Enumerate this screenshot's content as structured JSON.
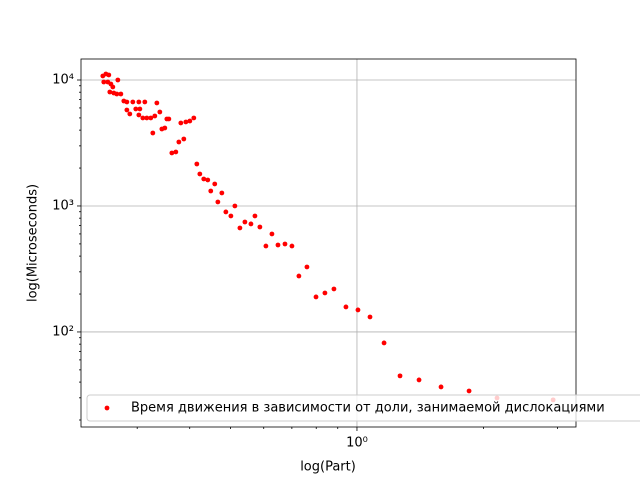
{
  "chart_data": {
    "type": "scatter",
    "log_x": true,
    "log_y": true,
    "grid": true,
    "legend": "lower left",
    "x_label": "log(Part)",
    "y_label": "log(Microseconds)",
    "xlim": [
      0.2205,
      3.32
    ],
    "ylim": [
      17.6,
      14678
    ],
    "xticks": [
      {
        "value": 1,
        "label": "10⁰"
      }
    ],
    "yticks": [
      {
        "value": 100,
        "label": "10²"
      },
      {
        "value": 1000,
        "label": "10³"
      },
      {
        "value": 10000,
        "label": "10⁴"
      }
    ],
    "series": [
      {
        "name": "Время движения в зависимости от доли, занимаемой дислокациями",
        "color": "#ff0000",
        "x": [
          0.2485,
          0.2527,
          0.2568,
          0.2498,
          0.2554,
          0.2597,
          0.2625,
          0.2582,
          0.2639,
          0.2698,
          0.2743,
          0.2683,
          0.2788,
          0.2835,
          0.2929,
          0.3027,
          0.3128,
          0.2835,
          0.2881,
          0.2977,
          0.3044,
          0.3027,
          0.3094,
          0.3162,
          0.3232,
          0.3304,
          0.3341,
          0.3396,
          0.3268,
          0.3434,
          0.3529,
          0.3568,
          0.349,
          0.3627,
          0.3707,
          0.3769,
          0.381,
          0.3873,
          0.3916,
          0.4003,
          0.4091,
          0.4159,
          0.4228,
          0.432,
          0.4416,
          0.4489,
          0.4588,
          0.4667,
          0.477,
          0.4876,
          0.5012,
          0.5123,
          0.5266,
          0.5412,
          0.5594,
          0.5718,
          0.5875,
          0.6072,
          0.6276,
          0.6487,
          0.6741,
          0.7003,
          0.7275,
          0.7603,
          0.799,
          0.839,
          0.8815,
          0.9414,
          1.0055,
          1.074,
          1.16,
          1.266,
          1.405,
          1.585,
          1.848,
          2.154,
          2.929
        ],
        "values": [
          10760,
          11160,
          10960,
          9640,
          9640,
          9295,
          8800,
          8030,
          7885,
          10000,
          7743,
          7743,
          6813,
          6690,
          6690,
          6690,
          6690,
          5780,
          5374,
          5887,
          5887,
          5275,
          4994,
          4994,
          4994,
          5179,
          6571,
          5572,
          3796,
          4084,
          4904,
          4904,
          4159,
          2634,
          2683,
          3220,
          4558,
          3401,
          4642,
          4727,
          4994,
          2154,
          1795,
          1638,
          1608,
          1315,
          1495,
          1076,
          1268,
          896.5,
          833,
          1000,
          669,
          746,
          720,
          833,
          681,
          481,
          599.5,
          490,
          499,
          481,
          278,
          328,
          189.6,
          203.9,
          219.4,
          157.9,
          149.5,
          131.5,
          81.8,
          44.8,
          41.6,
          36.6,
          34.0,
          29.9,
          28.9
        ]
      }
    ]
  }
}
